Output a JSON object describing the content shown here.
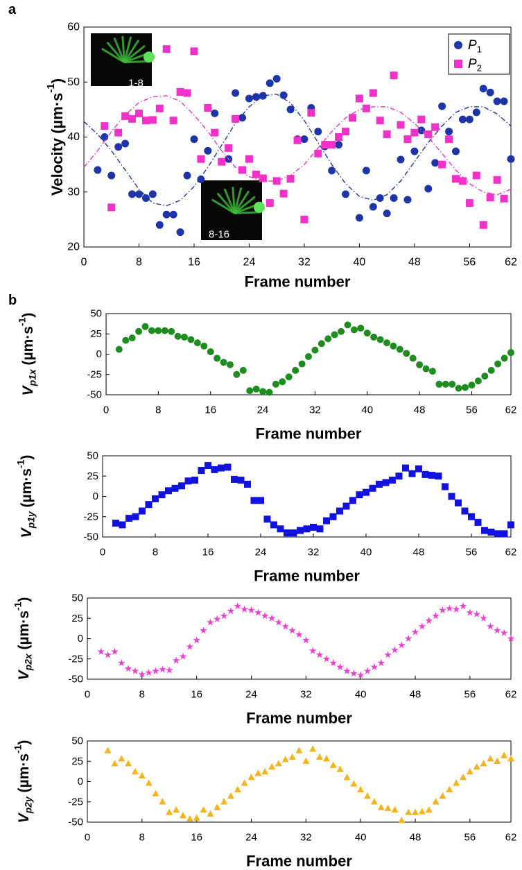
{
  "chart_data": [
    {
      "type": "scatter",
      "panel": "a",
      "xlabel": "Frame number",
      "ylabel": [
        {
          "text": "Velocity (µm·s"
        },
        {
          "text": "-1",
          "style": "sup"
        },
        {
          "text": ")"
        }
      ],
      "xlim": [
        0,
        62
      ],
      "xticks": [
        0,
        8,
        16,
        24,
        32,
        40,
        48,
        56,
        62
      ],
      "ylim": [
        20,
        60
      ],
      "yticks": [
        20,
        30,
        40,
        50,
        60
      ],
      "legend": "upper right",
      "annotations": [
        "1-8",
        "8-16"
      ],
      "series": [
        {
          "name": [
            {
              "text": "P",
              "style": "italic"
            },
            {
              "text": "1",
              "style": "sub"
            }
          ],
          "color": "#1e35a8",
          "marker": "circle",
          "x": [
            2,
            3,
            4,
            5,
            6,
            7,
            8,
            9,
            10,
            11,
            12,
            13,
            14,
            15,
            16,
            17,
            18,
            19,
            21,
            22,
            23,
            24,
            25,
            26,
            27,
            28,
            29,
            30,
            31,
            32,
            33,
            34,
            35,
            36,
            37,
            38,
            40,
            41,
            42,
            43,
            44,
            45,
            46,
            47,
            48,
            49,
            50,
            51,
            52,
            53,
            54,
            55,
            56,
            57,
            58,
            59,
            60,
            61,
            62
          ],
          "values": [
            34,
            40,
            33,
            38.2,
            38.8,
            29.6,
            29.6,
            28.9,
            29.6,
            24,
            25.9,
            25.9,
            22.7,
            33,
            39.6,
            32.3,
            37.5,
            44.3,
            36,
            48,
            43.5,
            47,
            47.3,
            47.5,
            49.8,
            50.6,
            47.6,
            45,
            39.6,
            39.6,
            45.3,
            41,
            38.3,
            33.9,
            38.6,
            29.6,
            25.3,
            33.9,
            27.3,
            28.9,
            26.1,
            28.9,
            35.9,
            28.6,
            37.4,
            41.2,
            30.6,
            35.3,
            45.6,
            41,
            37.4,
            43.2,
            43.2,
            44.5,
            48.8,
            48.1,
            46.5,
            46.5,
            36
          ],
          "fit": {
            "x": [
              0,
              2,
              4,
              6,
              8,
              10,
              12,
              14,
              16,
              18,
              20,
              22,
              24,
              26,
              28,
              30,
              32,
              34,
              36,
              38,
              40,
              42,
              44,
              46,
              48,
              50,
              52,
              54,
              56,
              58,
              60,
              62
            ],
            "values": [
              42.8,
              40.5,
              37.5,
              34,
              30.5,
              28,
              27.5,
              28.5,
              31,
              34.5,
              38.5,
              42.5,
              45.5,
              47.5,
              47.8,
              46.2,
              43,
              39,
              35,
              31.5,
              29.2,
              28.5,
              29.5,
              32,
              35.5,
              39,
              42,
              44.5,
              45.5,
              45.5,
              44.2,
              42
            ]
          }
        },
        {
          "name": [
            {
              "text": "P",
              "style": "italic"
            },
            {
              "text": "2",
              "style": "sub"
            }
          ],
          "color": "#f032c8",
          "marker": "square",
          "x": [
            3,
            4,
            5,
            6,
            7,
            8,
            9,
            10,
            11,
            12,
            13,
            14,
            15,
            16,
            17,
            18,
            19,
            20,
            21,
            22,
            23,
            24,
            25,
            26,
            27,
            28,
            29,
            30,
            31,
            32,
            33,
            34,
            35,
            36,
            37,
            38,
            39,
            40,
            41,
            42,
            43,
            44,
            45,
            46,
            47,
            48,
            49,
            50,
            51,
            52,
            53,
            54,
            55,
            56,
            57,
            58,
            59,
            60,
            61
          ],
          "values": [
            42,
            27.2,
            40.8,
            43.8,
            43.3,
            44.3,
            43,
            43.1,
            45.2,
            56,
            43,
            48.2,
            48,
            55.6,
            36,
            45.3,
            40.8,
            35.5,
            38,
            43.3,
            34,
            36,
            33.2,
            32.5,
            28,
            32,
            29.7,
            32.4,
            39.4,
            25,
            44.4,
            37,
            38.6,
            38.6,
            40,
            41,
            43.5,
            47,
            45.2,
            48,
            43,
            40.5,
            51.2,
            42.2,
            39.6,
            40.8,
            43.2,
            40.5,
            41.8,
            35,
            39.6,
            32.4,
            32,
            28,
            33,
            24,
            29,
            32.2,
            28.8
          ],
          "fit": {
            "x": [
              0,
              2,
              4,
              6,
              8,
              10,
              12,
              14,
              16,
              18,
              20,
              22,
              24,
              26,
              28,
              30,
              32,
              34,
              36,
              38,
              40,
              42,
              44,
              46,
              48,
              50,
              52,
              54,
              56,
              58,
              60,
              62
            ],
            "values": [
              34.5,
              37.5,
              41,
              44,
              46.3,
              47.3,
              47.5,
              46.5,
              44,
              41,
              37.5,
              34.5,
              32.8,
              32,
              32,
              33,
              35,
              38,
              41,
              43.5,
              45,
              45.5,
              45.5,
              44.5,
              42.5,
              40,
              37,
              34,
              31.5,
              30,
              29.5,
              30.5
            ]
          }
        }
      ]
    },
    {
      "type": "scatter",
      "panel": "b",
      "xlabel": "Frame number",
      "ylabel": [
        {
          "text": "V",
          "style": "italic"
        },
        {
          "text": "p1x",
          "style": "sub-italic"
        },
        {
          "text": " (µm·s"
        },
        {
          "text": "-1",
          "style": "sup"
        },
        {
          "text": ")"
        }
      ],
      "xlim": [
        0,
        62
      ],
      "xticks": [
        0,
        8,
        16,
        24,
        32,
        40,
        48,
        56,
        62
      ],
      "ylim": [
        -50,
        50
      ],
      "yticks": [
        -50,
        -25,
        0,
        25,
        50
      ],
      "series": [
        {
          "color": "#1e8c1e",
          "marker": "circle",
          "x": [
            2,
            3,
            4,
            5,
            6,
            7,
            8,
            9,
            10,
            11,
            12,
            13,
            14,
            15,
            16,
            17,
            18,
            19,
            20,
            21,
            22,
            23,
            24,
            25,
            26,
            27,
            28,
            29,
            30,
            31,
            32,
            33,
            34,
            35,
            36,
            37,
            38,
            39,
            40,
            41,
            42,
            43,
            44,
            45,
            46,
            47,
            48,
            49,
            50,
            51,
            52,
            53,
            54,
            55,
            56,
            57,
            58,
            59,
            60,
            61,
            62
          ],
          "values": [
            6,
            17,
            20,
            28,
            34,
            29,
            29,
            29,
            28,
            22,
            21,
            18,
            14,
            10,
            3,
            -5,
            -10,
            -13,
            -25,
            -20,
            -45,
            -43,
            -46,
            -47,
            -37,
            -34,
            -28,
            -20,
            -12,
            -3,
            5,
            13,
            19,
            24,
            28,
            36,
            30,
            32,
            26,
            21,
            18,
            14,
            10,
            6,
            1,
            -5,
            -13,
            -18,
            -21,
            -37,
            -37,
            -37,
            -42,
            -41,
            -38,
            -33,
            -27,
            -20,
            -12,
            -5,
            2
          ]
        }
      ]
    },
    {
      "type": "scatter",
      "xlabel": "Frame number",
      "ylabel": [
        {
          "text": "V",
          "style": "italic"
        },
        {
          "text": "p1y",
          "style": "sub-italic"
        },
        {
          "text": " (µm·s"
        },
        {
          "text": "-1",
          "style": "sup"
        },
        {
          "text": ")"
        }
      ],
      "xlim": [
        0,
        62
      ],
      "xticks": [
        0,
        8,
        16,
        24,
        32,
        40,
        48,
        56,
        62
      ],
      "ylim": [
        -50,
        50
      ],
      "yticks": [
        -50,
        -25,
        0,
        25,
        50
      ],
      "series": [
        {
          "color": "#1212e0",
          "marker": "square",
          "x": [
            2,
            3,
            4,
            5,
            6,
            7,
            8,
            9,
            10,
            11,
            12,
            13,
            14,
            15,
            16,
            17,
            18,
            19,
            20,
            21,
            22,
            23,
            24,
            25,
            26,
            27,
            28,
            29,
            30,
            31,
            32,
            33,
            34,
            35,
            36,
            37,
            38,
            39,
            40,
            41,
            42,
            43,
            44,
            45,
            46,
            47,
            48,
            49,
            50,
            51,
            52,
            53,
            54,
            55,
            56,
            57,
            58,
            59,
            60,
            61,
            62
          ],
          "values": [
            -33,
            -35,
            -27,
            -25,
            -18,
            -10,
            -3,
            2,
            7,
            10,
            13,
            19,
            20,
            32,
            38,
            33,
            35,
            36,
            21,
            20,
            15,
            -5,
            -5,
            -28,
            -35,
            -40,
            -45,
            -45,
            -42,
            -40,
            -38,
            -40,
            -30,
            -25,
            -18,
            -12,
            -5,
            2,
            5,
            10,
            15,
            17,
            20,
            25,
            35,
            28,
            34,
            27,
            26,
            25,
            12,
            0,
            -8,
            -18,
            -25,
            -32,
            -42,
            -44,
            -46,
            -46,
            -35
          ]
        }
      ]
    },
    {
      "type": "scatter",
      "xlabel": "Frame number",
      "ylabel": [
        {
          "text": "V",
          "style": "italic"
        },
        {
          "text": "p2x",
          "style": "sub-italic"
        },
        {
          "text": " (µm·s"
        },
        {
          "text": "-1",
          "style": "sup"
        },
        {
          "text": ")"
        }
      ],
      "xlim": [
        0,
        62
      ],
      "xticks": [
        0,
        8,
        16,
        24,
        32,
        40,
        48,
        56,
        62
      ],
      "ylim": [
        -50,
        50
      ],
      "yticks": [
        -50,
        -25,
        0,
        25,
        50
      ],
      "series": [
        {
          "color": "#f03cd2",
          "marker": "star",
          "x": [
            2,
            3,
            4,
            5,
            6,
            7,
            8,
            9,
            10,
            11,
            12,
            13,
            14,
            15,
            16,
            17,
            18,
            19,
            20,
            21,
            22,
            23,
            24,
            25,
            26,
            27,
            28,
            29,
            30,
            31,
            32,
            33,
            34,
            35,
            36,
            37,
            38,
            39,
            40,
            41,
            42,
            43,
            44,
            45,
            46,
            47,
            48,
            49,
            50,
            51,
            52,
            53,
            54,
            55,
            56,
            57,
            58,
            59,
            60,
            61,
            62
          ],
          "values": [
            -16,
            -20,
            -16,
            -30,
            -37,
            -40,
            -44,
            -42,
            -40,
            -38,
            -39,
            -27,
            -22,
            -10,
            -2,
            10,
            20,
            24,
            28,
            34,
            40,
            36,
            35,
            32,
            28,
            25,
            20,
            15,
            10,
            5,
            -2,
            -15,
            -20,
            -25,
            -30,
            -35,
            -40,
            -43,
            -45,
            -40,
            -35,
            -30,
            -20,
            -14,
            -8,
            0,
            8,
            15,
            22,
            28,
            35,
            37,
            36,
            40,
            32,
            30,
            25,
            15,
            10,
            7,
            0
          ]
        }
      ]
    },
    {
      "type": "scatter",
      "xlabel": "Frame number",
      "ylabel": [
        {
          "text": "V",
          "style": "italic"
        },
        {
          "text": "p2y",
          "style": "sub-italic"
        },
        {
          "text": " (µm·s"
        },
        {
          "text": "-1",
          "style": "sup"
        },
        {
          "text": ")"
        }
      ],
      "xlim": [
        0,
        62
      ],
      "xticks": [
        0,
        8,
        16,
        24,
        32,
        40,
        48,
        56,
        62
      ],
      "ylim": [
        -50,
        50
      ],
      "yticks": [
        -50,
        -25,
        0,
        25,
        50
      ],
      "series": [
        {
          "color": "#f5b31c",
          "marker": "triangle",
          "x": [
            3,
            4,
            5,
            6,
            7,
            8,
            9,
            10,
            11,
            12,
            13,
            14,
            15,
            16,
            17,
            18,
            19,
            20,
            21,
            22,
            23,
            24,
            25,
            26,
            27,
            28,
            29,
            30,
            31,
            32,
            33,
            34,
            35,
            36,
            37,
            38,
            39,
            40,
            41,
            42,
            43,
            44,
            45,
            46,
            47,
            48,
            49,
            50,
            51,
            52,
            53,
            54,
            55,
            56,
            57,
            58,
            59,
            60,
            61,
            62
          ],
          "values": [
            38,
            22,
            28,
            22,
            12,
            7,
            -2,
            -15,
            -25,
            -38,
            -35,
            -42,
            -46,
            -45,
            -35,
            -40,
            -32,
            -25,
            -18,
            -10,
            -2,
            5,
            10,
            12,
            18,
            22,
            27,
            30,
            38,
            25,
            40,
            30,
            28,
            20,
            15,
            5,
            -3,
            -10,
            -18,
            -25,
            -32,
            -33,
            -35,
            -48,
            -38,
            -38,
            -37,
            -35,
            -25,
            -18,
            -10,
            -2,
            5,
            12,
            18,
            22,
            28,
            25,
            32,
            28
          ]
        }
      ]
    }
  ]
}
